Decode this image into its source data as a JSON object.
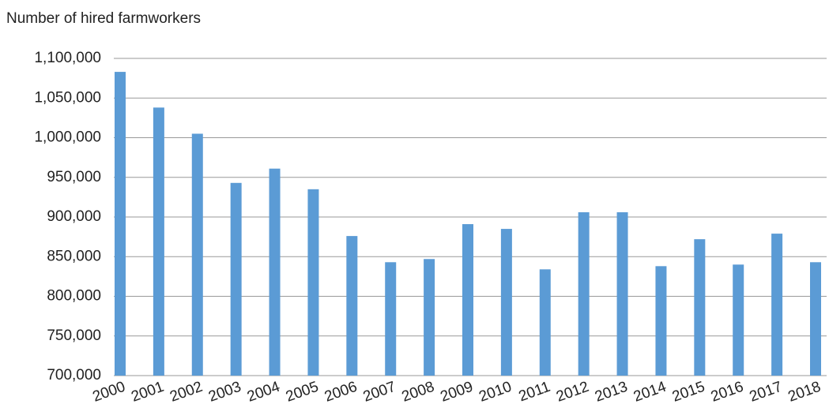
{
  "chart_data": {
    "type": "bar",
    "title": "Number of hired farmworkers",
    "categories": [
      "2000",
      "2001",
      "2002",
      "2003",
      "2004",
      "2005",
      "2006",
      "2007",
      "2008",
      "2009",
      "2010",
      "2011",
      "2012",
      "2013",
      "2014",
      "2015",
      "2016",
      "2017",
      "2018"
    ],
    "values": [
      1083000,
      1038000,
      1005000,
      943000,
      961000,
      935000,
      876000,
      843000,
      847000,
      891000,
      885000,
      834000,
      906000,
      906000,
      838000,
      872000,
      840000,
      879000,
      843000
    ],
    "color": "#5b9bd5",
    "ylim": [
      700000,
      1100000
    ],
    "yticks": [
      {
        "value": 700000,
        "label": "700,000"
      },
      {
        "value": 750000,
        "label": "750,000"
      },
      {
        "value": 800000,
        "label": "800,000"
      },
      {
        "value": 850000,
        "label": "850,000"
      },
      {
        "value": 900000,
        "label": "900,000"
      },
      {
        "value": 950000,
        "label": "950,000"
      },
      {
        "value": 1000000,
        "label": "1,000,000"
      },
      {
        "value": 1050000,
        "label": "1,050,000"
      },
      {
        "value": 1100000,
        "label": "1,100,000"
      }
    ],
    "grid": true
  }
}
